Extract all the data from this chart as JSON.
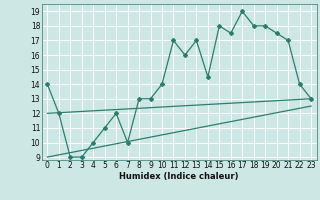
{
  "xlabel": "Humidex (Indice chaleur)",
  "bg_color": "#cde8e4",
  "grid_color": "#ffffff",
  "line_color": "#2d7d6e",
  "xlim": [
    -0.5,
    23.5
  ],
  "ylim": [
    8.8,
    19.5
  ],
  "xticks": [
    0,
    1,
    2,
    3,
    4,
    5,
    6,
    7,
    8,
    9,
    10,
    11,
    12,
    13,
    14,
    15,
    16,
    17,
    18,
    19,
    20,
    21,
    22,
    23
  ],
  "yticks": [
    9,
    10,
    11,
    12,
    13,
    14,
    15,
    16,
    17,
    18,
    19
  ],
  "series1_x": [
    0,
    1,
    2,
    3,
    4,
    5,
    6,
    7,
    8,
    9,
    10,
    11,
    12,
    13,
    14,
    15,
    16,
    17,
    18,
    19,
    20,
    21,
    22,
    23
  ],
  "series1_y": [
    14,
    12,
    9,
    9,
    10,
    11,
    12,
    10,
    13,
    13,
    14,
    17,
    16,
    17,
    14.5,
    18,
    17.5,
    19,
    18,
    18,
    17.5,
    17,
    14,
    13
  ],
  "series2_x": [
    0,
    23
  ],
  "series2_y": [
    12,
    13
  ],
  "series3_x": [
    0,
    23
  ],
  "series3_y": [
    9,
    12.5
  ],
  "xlabel_fontsize": 6.0,
  "tick_fontsize": 5.5
}
